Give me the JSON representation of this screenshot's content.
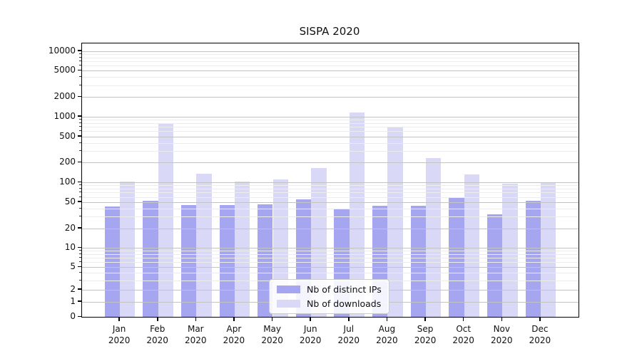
{
  "chart_data": {
    "type": "bar",
    "title": "SISPA 2020",
    "categories": [
      "Jan 2020",
      "Feb 2020",
      "Mar 2020",
      "Apr 2020",
      "May 2020",
      "Jun 2020",
      "Jul 2020",
      "Aug 2020",
      "Sep 2020",
      "Oct 2020",
      "Nov 2020",
      "Dec 2020"
    ],
    "series": [
      {
        "name": "Nb of distinct IPs",
        "color": "#a5a5f0",
        "values": [
          43,
          52,
          45,
          45,
          46,
          55,
          40,
          44,
          44,
          58,
          33,
          52
        ]
      },
      {
        "name": "Nb of downloads",
        "color": "#d9d9f7",
        "values": [
          103,
          780,
          135,
          104,
          110,
          165,
          1170,
          680,
          235,
          132,
          95,
          101
        ]
      }
    ],
    "xlabel": "",
    "ylabel": "",
    "yscale": "symlog",
    "y_ticks": [
      0,
      1,
      2,
      5,
      10,
      20,
      50,
      100,
      200,
      500,
      1000,
      2000,
      5000,
      10000
    ],
    "ylim": [
      0,
      13000
    ],
    "grid": "horizontal major and minor gridlines drawn over bars",
    "legend_position": "lower center inside plot"
  }
}
